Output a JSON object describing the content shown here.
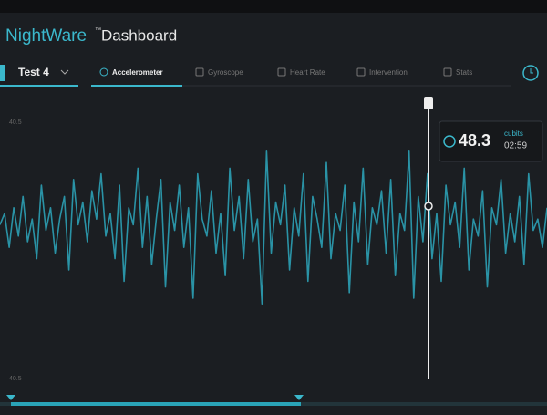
{
  "header": {
    "brand": "NightWare",
    "trademark": "™",
    "title": "Dashboard"
  },
  "session": "Test 4",
  "tabs": [
    "Accelerometer",
    "Gyroscope",
    "Heart Rate",
    "Intervention",
    "Stats"
  ],
  "active_tab": 0,
  "readout": {
    "value": 48.3,
    "unit": "cubits",
    "time": "02:59"
  },
  "chart_data": {
    "type": "line",
    "top_label": "40.5",
    "bottom_label": "40.5",
    "color": "#2a93a6",
    "ylim": [
      0,
      100
    ],
    "values": [
      56,
      60,
      48,
      62,
      52,
      66,
      50,
      58,
      44,
      70,
      54,
      62,
      46,
      58,
      66,
      40,
      72,
      56,
      64,
      50,
      68,
      58,
      74,
      52,
      60,
      44,
      70,
      36,
      62,
      56,
      76,
      48,
      66,
      42,
      58,
      72,
      34,
      64,
      54,
      70,
      48,
      62,
      30,
      74,
      58,
      52,
      68,
      46,
      60,
      38,
      76,
      54,
      66,
      44,
      72,
      50,
      58,
      28,
      82,
      46,
      64,
      56,
      70,
      40,
      62,
      52,
      74,
      36,
      66,
      58,
      48,
      78,
      44,
      60,
      54,
      70,
      32,
      64,
      50,
      76,
      42,
      62,
      56,
      68,
      46,
      72,
      38,
      60,
      54,
      82,
      30,
      66,
      50,
      74,
      44,
      60,
      36,
      70,
      56,
      64,
      48,
      76,
      40,
      58,
      52,
      68,
      34,
      62,
      56,
      72,
      46,
      60,
      50,
      66,
      42,
      74,
      54,
      58,
      48,
      62
    ]
  }
}
